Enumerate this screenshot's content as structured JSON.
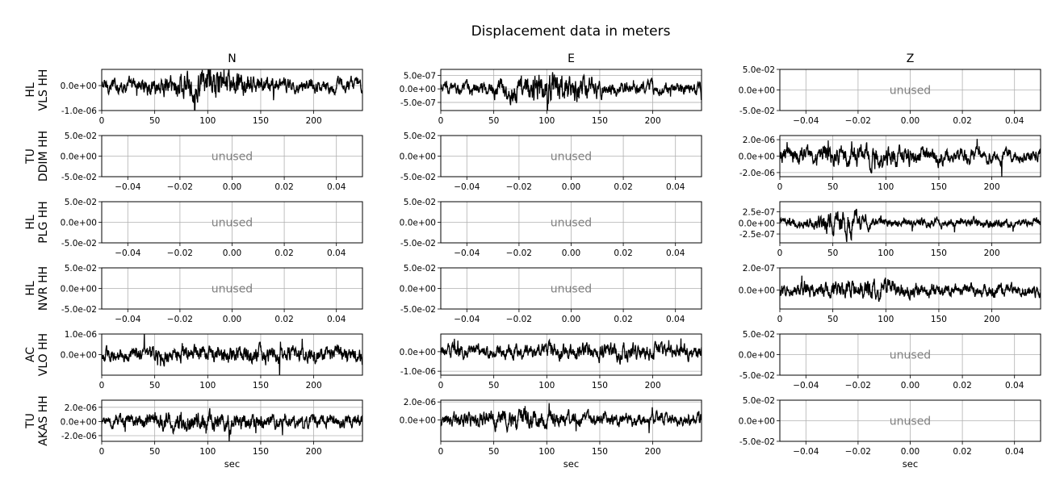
{
  "title": "Displacement data in meters",
  "columns": [
    "N",
    "E",
    "Z"
  ],
  "rows": [
    {
      "network": "HL",
      "station": "VLS HH"
    },
    {
      "network": "TU",
      "station": "DDIM HH"
    },
    {
      "network": "HL",
      "station": "PLG HH"
    },
    {
      "network": "HL",
      "station": "NVR HH"
    },
    {
      "network": "AC",
      "station": "VLO HH"
    },
    {
      "network": "TU",
      "station": "AKAS HH"
    }
  ],
  "unused_label": "unused",
  "xlabel": "sec",
  "chart_data": {
    "type": "line",
    "x_range": [
      0,
      246
    ],
    "time_ticks": [
      0,
      50,
      100,
      150,
      200
    ],
    "unused_xlim": [
      -0.05,
      0.05
    ],
    "unused_ylim": [
      -0.05,
      0.05
    ],
    "unused_xticks": [
      -0.04,
      -0.02,
      0.0,
      0.02,
      0.04
    ],
    "unused_xtick_labels": [
      "−0.04",
      "−0.02",
      "0.00",
      "0.02",
      "0.04"
    ],
    "unused_yticks": [
      -0.05,
      0,
      0.05
    ],
    "unused_ytick_labels": [
      "-5.0e-02",
      "0.0e+00",
      "5.0e-02"
    ],
    "grid": true,
    "panels": [
      {
        "row": 0,
        "col": 0,
        "used": true,
        "ylim": [
          -1e-06,
          6.5e-07
        ],
        "yticks": [
          -1e-06,
          0
        ],
        "ytick_labels": [
          "-1.0e-06",
          "0.0e+00"
        ],
        "amplitude": 2.2e-07,
        "burst_center": 100,
        "burst_width": 45,
        "burst_gain": 2.2
      },
      {
        "row": 0,
        "col": 1,
        "used": true,
        "ylim": [
          -8e-07,
          7.2e-07
        ],
        "yticks": [
          -5e-07,
          0,
          5e-07
        ],
        "ytick_labels": [
          "-5.0e-07",
          "0.0e+00",
          "5.0e-07"
        ],
        "amplitude": 1.8e-07,
        "burst_center": 102,
        "burst_width": 40,
        "burst_gain": 2.6
      },
      {
        "row": 0,
        "col": 2,
        "used": false
      },
      {
        "row": 1,
        "col": 0,
        "used": false
      },
      {
        "row": 1,
        "col": 1,
        "used": false
      },
      {
        "row": 1,
        "col": 2,
        "used": true,
        "ylim": [
          -2.5e-06,
          2.5e-06
        ],
        "yticks": [
          -2e-06,
          0,
          2e-06
        ],
        "ytick_labels": [
          "-2.0e-06",
          "0.0e+00",
          "2.0e-06"
        ],
        "amplitude": 6.5e-07,
        "burst_center": 80,
        "burst_width": 70,
        "burst_gain": 1.6
      },
      {
        "row": 2,
        "col": 0,
        "used": false
      },
      {
        "row": 2,
        "col": 1,
        "used": false
      },
      {
        "row": 2,
        "col": 2,
        "used": true,
        "ylim": [
          -4.5e-07,
          4.8e-07
        ],
        "yticks": [
          -2.5e-07,
          0,
          2.5e-07
        ],
        "ytick_labels": [
          "-2.5e-07",
          "0.0e+00",
          "2.5e-07"
        ],
        "amplitude": 8e-08,
        "burst_center": 60,
        "burst_width": 20,
        "burst_gain": 3.0
      },
      {
        "row": 3,
        "col": 0,
        "used": false
      },
      {
        "row": 3,
        "col": 1,
        "used": false
      },
      {
        "row": 3,
        "col": 2,
        "used": true,
        "ylim": [
          -1.7e-07,
          2e-07
        ],
        "yticks": [
          0,
          2e-07
        ],
        "ytick_labels": [
          "0.0e+00",
          "2.0e-07"
        ],
        "amplitude": 4.5e-08,
        "burst_center": 85,
        "burst_width": 50,
        "burst_gain": 1.6
      },
      {
        "row": 4,
        "col": 0,
        "used": true,
        "ylim": [
          -1e-06,
          1e-06
        ],
        "yticks": [
          0,
          1e-06
        ],
        "ytick_labels": [
          "0.0e+00",
          "1.0e-06"
        ],
        "amplitude": 2.6e-07,
        "burst_center": 150,
        "burst_width": 90,
        "burst_gain": 1.3
      },
      {
        "row": 4,
        "col": 1,
        "used": true,
        "ylim": [
          -1.2e-06,
          9e-07
        ],
        "yticks": [
          -1e-06,
          0
        ],
        "ytick_labels": [
          "-1.0e-06",
          "0.0e+00"
        ],
        "amplitude": 2.6e-07,
        "burst_center": 150,
        "burst_width": 90,
        "burst_gain": 1.3
      },
      {
        "row": 4,
        "col": 2,
        "used": false
      },
      {
        "row": 5,
        "col": 0,
        "used": true,
        "ylim": [
          -2.8e-06,
          3e-06
        ],
        "yticks": [
          -2e-06,
          0,
          2e-06
        ],
        "ytick_labels": [
          "-2.0e-06",
          "0.0e+00",
          "2.0e-06"
        ],
        "amplitude": 7e-07,
        "burst_center": 90,
        "burst_width": 60,
        "burst_gain": 1.5
      },
      {
        "row": 5,
        "col": 1,
        "used": true,
        "ylim": [
          -2.4e-06,
          2.2e-06
        ],
        "yticks": [
          0,
          2e-06
        ],
        "ytick_labels": [
          "0.0e+00",
          "2.0e-06"
        ],
        "amplitude": 5.5e-07,
        "burst_center": 70,
        "burst_width": 50,
        "burst_gain": 1.6
      },
      {
        "row": 5,
        "col": 2,
        "used": false
      }
    ]
  }
}
